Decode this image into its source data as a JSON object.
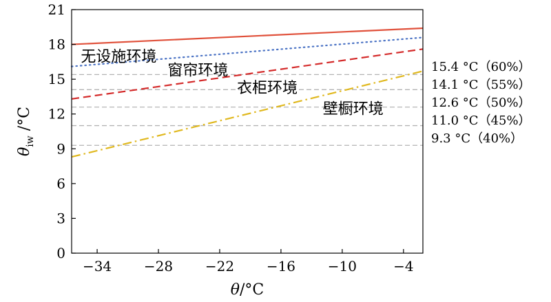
{
  "chart_data": {
    "type": "line",
    "xlabel": "θ/°C",
    "ylabel": "θ_iw /°C",
    "ylabel_main": "θ",
    "ylabel_sub": "iw",
    "ylabel_unit": " /°C",
    "xlim": [
      -36.5,
      -2.1
    ],
    "ylim": [
      0,
      21
    ],
    "xticks": [
      -34,
      -28,
      -22,
      -16,
      -10,
      -4
    ],
    "xtick_labels": [
      "−34",
      "−28",
      "−22",
      "−16",
      "−10",
      "−4"
    ],
    "yticks": [
      0,
      3,
      6,
      9,
      12,
      15,
      18,
      21
    ],
    "ytick_labels": [
      "0",
      "3",
      "6",
      "9",
      "12",
      "15",
      "18",
      "21"
    ],
    "grid": false,
    "series": [
      {
        "name": "无设施环境",
        "style": "solid",
        "color": "#e0503a",
        "x": [
          -36.5,
          -2.1
        ],
        "y": [
          18.0,
          19.4
        ]
      },
      {
        "name": "窗帘环境",
        "style": "dotted",
        "color": "#4a72c4",
        "x": [
          -36.5,
          -2.1
        ],
        "y": [
          16.1,
          18.6
        ]
      },
      {
        "name": "衣柜环境",
        "style": "dashed",
        "color": "#d42a2a",
        "x": [
          -36.5,
          -2.1
        ],
        "y": [
          13.3,
          17.6
        ]
      },
      {
        "name": "壁橱环境",
        "style": "dashdot",
        "color": "#e0b81e",
        "x": [
          -36.5,
          -2.1
        ],
        "y": [
          8.3,
          15.7
        ]
      }
    ],
    "reference_lines": [
      {
        "y": 15.4,
        "label": "15.4 °C（60%）"
      },
      {
        "y": 14.1,
        "label": "14.1 °C（55%）"
      },
      {
        "y": 12.6,
        "label": "12.6 °C（50%）"
      },
      {
        "y": 11.0,
        "label": "11.0 °C（45%）"
      },
      {
        "y": 9.3,
        "label": "9.3 °C（40%）"
      }
    ],
    "reference_color": "#b3b3b3",
    "series_labels": [
      {
        "text": "无设施环境",
        "x": -35.6,
        "y": 17.0
      },
      {
        "text": "窗帘环境",
        "x": -27.1,
        "y": 15.8
      },
      {
        "text": "衣柜环境",
        "x": -20.3,
        "y": 14.3
      },
      {
        "text": "壁橱环境",
        "x": -11.9,
        "y": 12.5
      }
    ]
  }
}
